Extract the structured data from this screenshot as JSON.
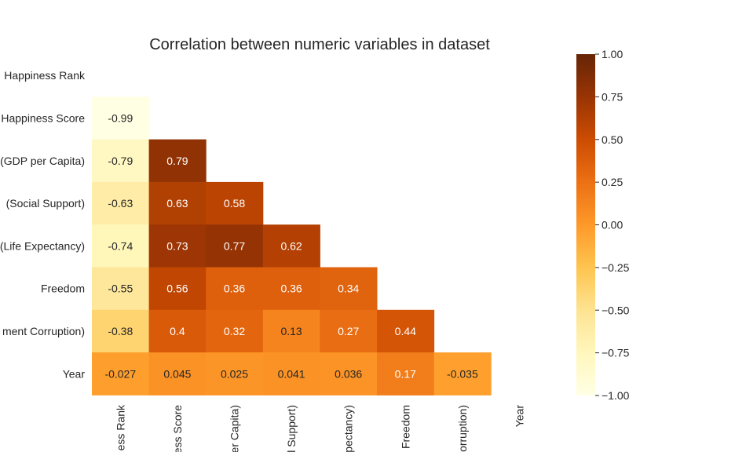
{
  "chart_data": {
    "type": "heatmap",
    "title": "Correlation between numeric variables in dataset",
    "mask": "upper-triangle-and-diagonal",
    "y_tick_labels": [
      "Happiness Rank",
      "Happiness Score",
      "(GDP per Capita)",
      "(Social Support)",
      "(Life Expectancy)",
      "Freedom",
      "ment Corruption)",
      "Year"
    ],
    "x_tick_labels": [
      "ess Rank",
      "ess Score",
      "er Capita)",
      "l Support)",
      "pectancy)",
      "Freedom",
      "orruption)",
      "Year"
    ],
    "cells": [
      {
        "row": 1,
        "col": 0,
        "value": -0.99,
        "label": "-0.99"
      },
      {
        "row": 2,
        "col": 0,
        "value": -0.79,
        "label": "-0.79"
      },
      {
        "row": 2,
        "col": 1,
        "value": 0.79,
        "label": "0.79"
      },
      {
        "row": 3,
        "col": 0,
        "value": -0.63,
        "label": "-0.63"
      },
      {
        "row": 3,
        "col": 1,
        "value": 0.63,
        "label": "0.63"
      },
      {
        "row": 3,
        "col": 2,
        "value": 0.58,
        "label": "0.58"
      },
      {
        "row": 4,
        "col": 0,
        "value": -0.74,
        "label": "-0.74"
      },
      {
        "row": 4,
        "col": 1,
        "value": 0.73,
        "label": "0.73"
      },
      {
        "row": 4,
        "col": 2,
        "value": 0.77,
        "label": "0.77"
      },
      {
        "row": 4,
        "col": 3,
        "value": 0.62,
        "label": "0.62"
      },
      {
        "row": 5,
        "col": 0,
        "value": -0.55,
        "label": "-0.55"
      },
      {
        "row": 5,
        "col": 1,
        "value": 0.56,
        "label": "0.56"
      },
      {
        "row": 5,
        "col": 2,
        "value": 0.36,
        "label": "0.36"
      },
      {
        "row": 5,
        "col": 3,
        "value": 0.36,
        "label": "0.36"
      },
      {
        "row": 5,
        "col": 4,
        "value": 0.34,
        "label": "0.34"
      },
      {
        "row": 6,
        "col": 0,
        "value": -0.38,
        "label": "-0.38"
      },
      {
        "row": 6,
        "col": 1,
        "value": 0.4,
        "label": "0.4"
      },
      {
        "row": 6,
        "col": 2,
        "value": 0.32,
        "label": "0.32"
      },
      {
        "row": 6,
        "col": 3,
        "value": 0.13,
        "label": "0.13"
      },
      {
        "row": 6,
        "col": 4,
        "value": 0.27,
        "label": "0.27"
      },
      {
        "row": 6,
        "col": 5,
        "value": 0.44,
        "label": "0.44"
      },
      {
        "row": 7,
        "col": 0,
        "value": -0.027,
        "label": "-0.027"
      },
      {
        "row": 7,
        "col": 1,
        "value": 0.045,
        "label": "0.045"
      },
      {
        "row": 7,
        "col": 2,
        "value": 0.025,
        "label": "0.025"
      },
      {
        "row": 7,
        "col": 3,
        "value": 0.041,
        "label": "0.041"
      },
      {
        "row": 7,
        "col": 4,
        "value": 0.036,
        "label": "0.036"
      },
      {
        "row": 7,
        "col": 5,
        "value": 0.17,
        "label": "0.17"
      },
      {
        "row": 7,
        "col": 6,
        "value": -0.035,
        "label": "-0.035"
      }
    ],
    "colorbar": {
      "range": [
        -1.0,
        1.0
      ],
      "ticks": [
        1.0,
        0.75,
        0.5,
        0.25,
        0.0,
        -0.25,
        -0.5,
        -0.75,
        -1.0
      ],
      "tick_labels": [
        "1.00",
        "0.75",
        "0.50",
        "0.25",
        "0.00",
        "−0.25",
        "−0.50",
        "−0.75",
        "−1.00"
      ]
    },
    "colormap": {
      "name": "YlOrBr",
      "stops": [
        [
          0.0,
          "#ffffe5"
        ],
        [
          0.125,
          "#fff7bc"
        ],
        [
          0.25,
          "#fee391"
        ],
        [
          0.375,
          "#fec44f"
        ],
        [
          0.5,
          "#fe9929"
        ],
        [
          0.625,
          "#ec7014"
        ],
        [
          0.75,
          "#cc4c02"
        ],
        [
          0.875,
          "#993404"
        ],
        [
          1.0,
          "#662506"
        ]
      ]
    },
    "grid": false
  }
}
